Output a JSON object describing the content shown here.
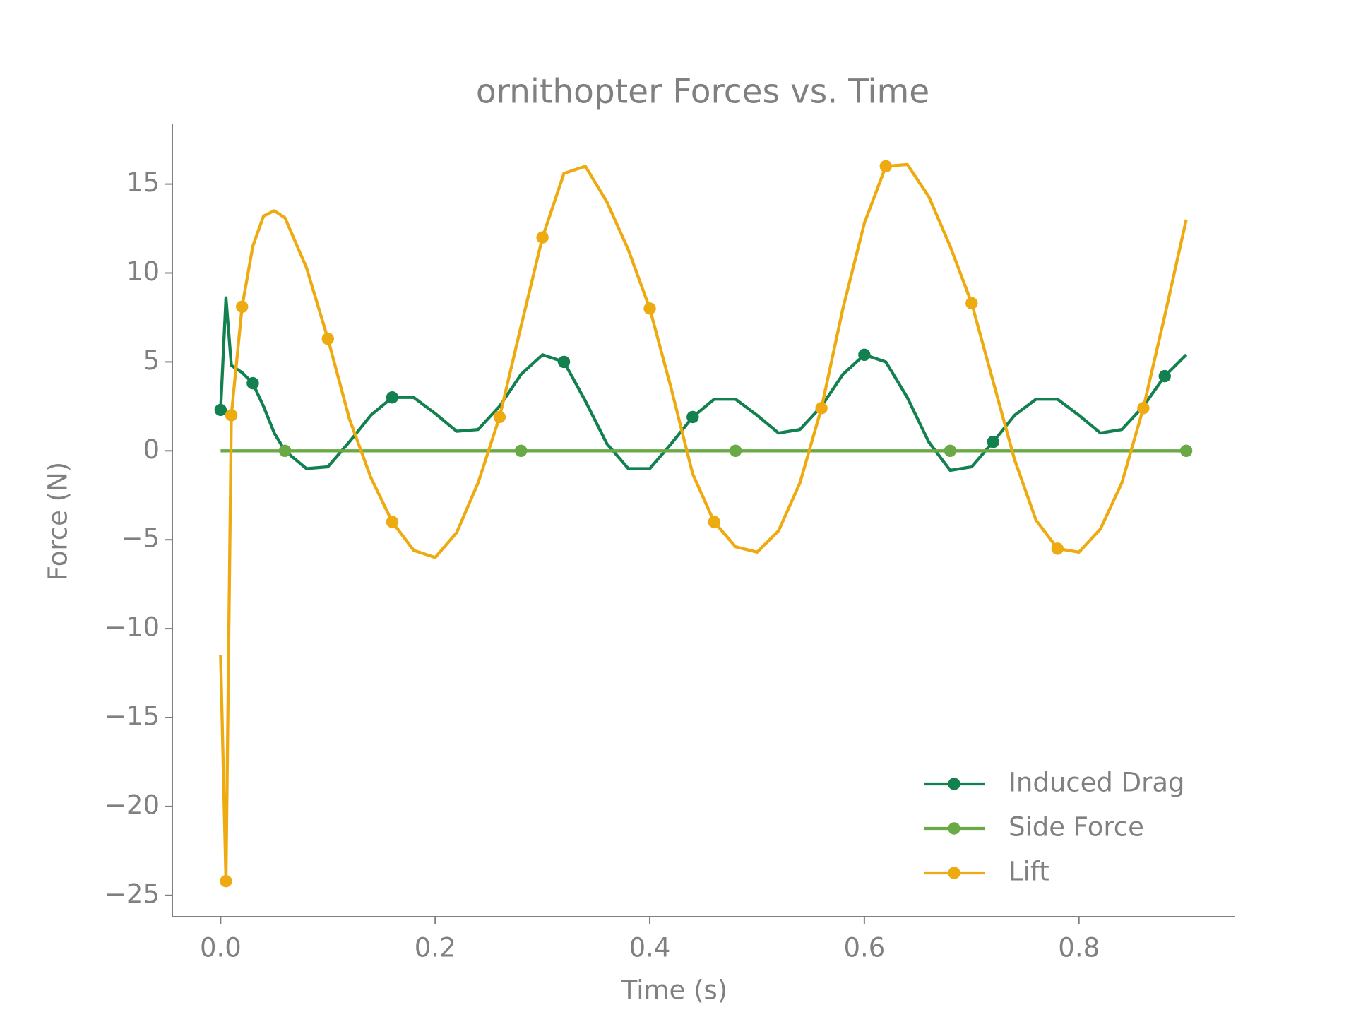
{
  "chart_data": {
    "type": "line",
    "title": "ornithopter Forces vs. Time",
    "x_label": "Time (s)",
    "y_label": "Force (N)",
    "x": [
      0,
      0.005,
      0.01,
      0.02,
      0.03,
      0.04,
      0.05,
      0.06,
      0.08,
      0.1,
      0.12,
      0.14,
      0.16,
      0.18,
      0.2,
      0.22,
      0.24,
      0.26,
      0.28,
      0.3,
      0.32,
      0.34,
      0.36,
      0.38,
      0.4,
      0.42,
      0.44,
      0.46,
      0.48,
      0.5,
      0.52,
      0.54,
      0.56,
      0.58,
      0.6,
      0.62,
      0.64,
      0.66,
      0.68,
      0.7,
      0.72,
      0.74,
      0.76,
      0.78,
      0.8,
      0.82,
      0.84,
      0.86,
      0.88,
      0.9
    ],
    "series": [
      {
        "name": "Induced Drag",
        "color": "#13804f",
        "markers": [
          0,
          4,
          12,
          20,
          26,
          34,
          40,
          48
        ],
        "values": [
          2.3,
          8.6,
          4.8,
          4.4,
          3.8,
          2.5,
          1.0,
          0.0,
          -1.0,
          -0.9,
          0.5,
          2.0,
          3.0,
          3.0,
          2.1,
          1.1,
          1.2,
          2.5,
          4.3,
          5.4,
          5.0,
          2.8,
          0.4,
          -1.0,
          -1.0,
          0.4,
          1.9,
          2.9,
          2.9,
          2.0,
          1.0,
          1.2,
          2.5,
          4.3,
          5.4,
          5.0,
          3.0,
          0.5,
          -1.1,
          -0.9,
          0.5,
          2.0,
          2.9,
          2.9,
          2.0,
          1.0,
          1.2,
          2.5,
          4.2,
          5.4
        ]
      },
      {
        "name": "Side Force",
        "color": "#6aaa46",
        "markers": [
          7,
          18,
          28,
          38,
          49
        ],
        "values": [
          0,
          0,
          0,
          0,
          0,
          0,
          0,
          0,
          0,
          0,
          0,
          0,
          0,
          0,
          0,
          0,
          0,
          0,
          0,
          0,
          0,
          0,
          0,
          0,
          0,
          0,
          0,
          0,
          0,
          0,
          0,
          0,
          0,
          0,
          0,
          0,
          0,
          0,
          0,
          0,
          0,
          0,
          0,
          0,
          0,
          0,
          0,
          0,
          0,
          0
        ]
      },
      {
        "name": "Lift",
        "color": "#eeaa11",
        "markers": [
          1,
          2,
          3,
          9,
          12,
          17,
          19,
          24,
          27,
          32,
          35,
          39,
          43,
          47
        ],
        "values": [
          -11.5,
          -24.2,
          2.0,
          8.1,
          11.5,
          13.2,
          13.5,
          13.1,
          10.3,
          6.3,
          1.8,
          -1.5,
          -4.0,
          -5.6,
          -6.0,
          -4.6,
          -1.8,
          1.9,
          7.0,
          12.0,
          15.6,
          16.0,
          14.0,
          11.3,
          8.0,
          3.5,
          -1.3,
          -4.0,
          -5.4,
          -5.7,
          -4.5,
          -1.8,
          2.4,
          8.0,
          12.8,
          16.0,
          16.1,
          14.3,
          11.5,
          8.3,
          3.9,
          -0.5,
          -3.9,
          -5.5,
          -5.7,
          -4.4,
          -1.8,
          2.4,
          7.6,
          13.0
        ]
      }
    ],
    "xlim": [
      -0.045,
      0.945
    ],
    "ylim": [
      -26.2,
      18.4
    ],
    "xticks": [
      {
        "value": 0,
        "label": "0.0"
      },
      0.2,
      0.4,
      0.6,
      0.8
    ],
    "yticks": [
      {
        "value": -25,
        "label": "−25"
      },
      {
        "value": -20,
        "label": "−20"
      },
      {
        "value": -15,
        "label": "−15"
      },
      {
        "value": -10,
        "label": "−10"
      },
      {
        "value": -5,
        "label": "−5"
      },
      0,
      5,
      10,
      15
    ],
    "grid": false,
    "legend": "lower right"
  }
}
